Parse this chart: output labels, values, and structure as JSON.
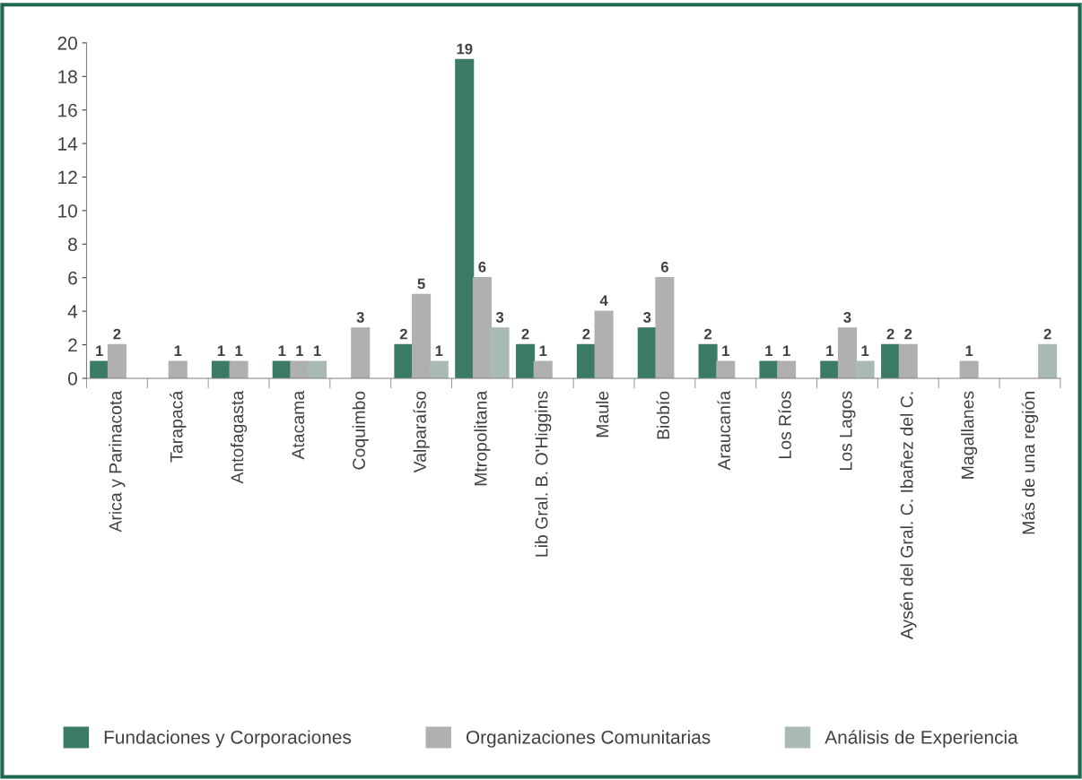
{
  "chart_data": {
    "type": "bar",
    "categories": [
      "Arica y Parinacota",
      "Tarapacá",
      "Antofagasta",
      "Atacama",
      "Coquimbo",
      "Valparaíso",
      "Mtropolitana",
      "Lib Gral. B. O'Higgins",
      "Maule",
      "Biobío",
      "Araucanía",
      "Los Ríos",
      "Los Lagos",
      "Aysén del Gral. C. Ibañez del C.",
      "Magallanes",
      "Más de una región"
    ],
    "series": [
      {
        "name": "Fundaciones y Corporaciones",
        "color": "#3b7b65",
        "values": [
          1,
          null,
          1,
          1,
          null,
          2,
          19,
          2,
          2,
          3,
          2,
          1,
          1,
          2,
          null,
          null
        ]
      },
      {
        "name": "Organizaciones Comunitarias",
        "color": "#b0b0b0",
        "values": [
          2,
          1,
          1,
          1,
          3,
          5,
          6,
          1,
          4,
          6,
          1,
          1,
          3,
          2,
          1,
          null
        ]
      },
      {
        "name": "Análisis de Experiencia",
        "color": "#a9bab2",
        "values": [
          null,
          null,
          null,
          1,
          null,
          1,
          3,
          null,
          null,
          null,
          null,
          null,
          1,
          null,
          null,
          2
        ]
      }
    ],
    "ylim": [
      0,
      20
    ],
    "yticks": [
      0,
      2,
      4,
      6,
      8,
      10,
      12,
      14,
      16,
      18,
      20
    ],
    "data_labels": true,
    "grid": false,
    "legend": "bottom"
  }
}
